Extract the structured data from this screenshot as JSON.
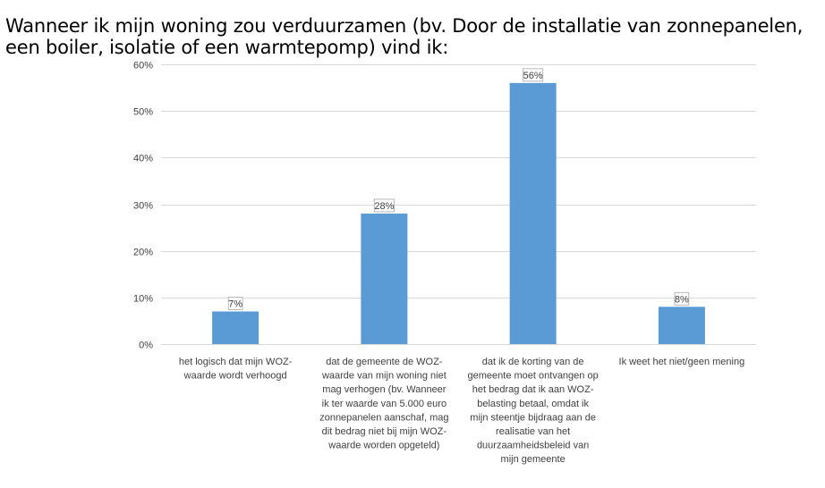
{
  "chart_data": {
    "type": "bar",
    "title": "Wanneer ik mijn woning zou verduurzamen (bv. Door de installatie van zonnepanelen, een boiler, isolatie of een warmtepomp) vind ik:",
    "categories": [
      "het logisch dat mijn WOZ-waarde wordt verhoogd",
      "dat de gemeente de WOZ-waarde van mijn woning niet mag verhogen (bv. Wanneer ik ter waarde van 5.000 euro zonnepanelen aanschaf, mag dit bedrag niet bij mijn WOZ-waarde worden opgeteld)",
      "dat ik de korting van de gemeente moet ontvangen op het bedrag dat ik aan WOZ-belasting betaal, omdat ik mijn steentje bijdraag aan de realisatie van het duurzaamheidsbeleid van mijn gemeente",
      "Ik weet het niet/geen mening"
    ],
    "category_label_lines": [
      [
        "het logisch dat mijn WOZ-",
        "waarde wordt verhoogd"
      ],
      [
        "dat de gemeente de WOZ-",
        "waarde van mijn woning niet",
        "mag verhogen (bv. Wanneer",
        "ik ter waarde van 5.000 euro",
        "zonnepanelen aanschaf, mag",
        "dit bedrag niet bij mijn WOZ-",
        "waarde worden opgeteld)"
      ],
      [
        "dat ik de korting van de",
        "gemeente moet ontvangen op",
        "het bedrag dat ik aan WOZ-",
        "belasting betaal, omdat ik",
        "mijn steentje bijdraag aan de",
        "realisatie van het",
        "duurzaamheidsbeleid van",
        "mijn gemeente"
      ],
      [
        "Ik weet het niet/geen mening"
      ]
    ],
    "values": [
      7,
      28,
      56,
      8
    ],
    "data_labels": [
      "7%",
      "28%",
      "56%",
      "8%"
    ],
    "ylim": [
      0,
      60
    ],
    "yticks": [
      0,
      10,
      20,
      30,
      40,
      50,
      60
    ],
    "ytick_labels": [
      "0%",
      "10%",
      "20%",
      "30%",
      "40%",
      "50%",
      "60%"
    ],
    "xlabel": "",
    "ylabel": "",
    "grid": true,
    "legend": "none",
    "bar_color": "#5b9bd5",
    "grid_color": "#d9d9d9"
  }
}
